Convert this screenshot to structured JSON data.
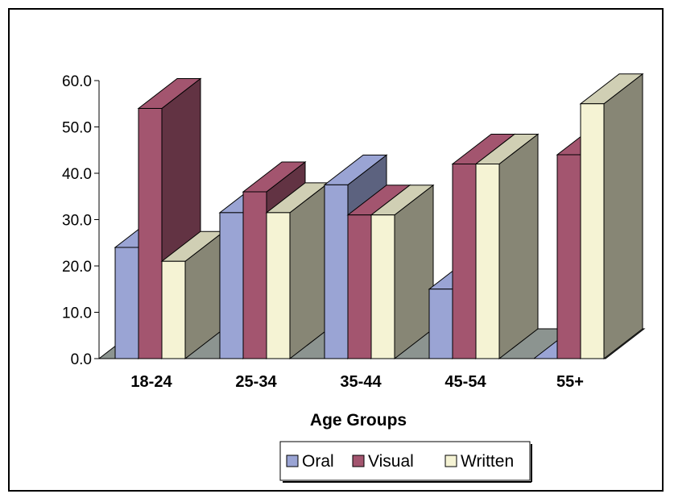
{
  "chart_data": {
    "type": "bar",
    "title": "",
    "xlabel": "Age Groups",
    "ylabel": "",
    "categories": [
      "18-24",
      "25-34",
      "35-44",
      "45-54",
      "55+"
    ],
    "ylim": [
      0,
      60
    ],
    "yticks": [
      "0.0",
      "10.0",
      "20.0",
      "30.0",
      "40.0",
      "50.0",
      "60.0"
    ],
    "grid": false,
    "legend_position": "bottom",
    "series": [
      {
        "name": "Oral",
        "values": [
          24,
          31.5,
          37.5,
          15,
          0
        ],
        "color": "#9aa4d4"
      },
      {
        "name": "Visual",
        "values": [
          54,
          36,
          31,
          42,
          44
        ],
        "color": "#a3556f"
      },
      {
        "name": "Written",
        "values": [
          21,
          31.5,
          31,
          42,
          55
        ],
        "color": "#f5f3d4"
      }
    ],
    "floor_color": "#8c9490",
    "back_wall_color": "#8c9490"
  }
}
